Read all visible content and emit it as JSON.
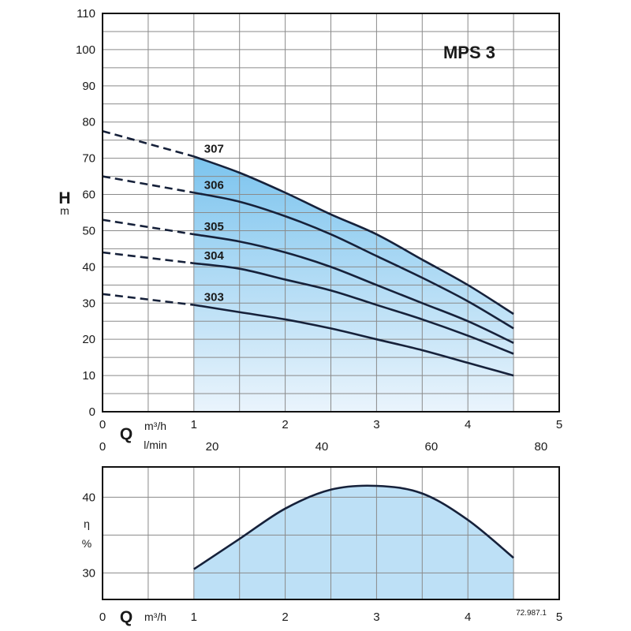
{
  "chart_data": [
    {
      "type": "line",
      "title": "MPS 3",
      "ylabel": "H",
      "yunit": "m",
      "xlabel": "Q",
      "xunit": "m³/h",
      "xunit_secondary": "l/min",
      "xlim": [
        0,
        5
      ],
      "ylim": [
        0,
        110
      ],
      "yticks": [
        "0",
        "10",
        "20",
        "30",
        "40",
        "50",
        "60",
        "70",
        "80",
        "90",
        "100",
        "110"
      ],
      "xticks": [
        "0",
        "1",
        "2",
        "3",
        "4",
        "5"
      ],
      "xticks_secondary": [
        "0",
        "20",
        "40",
        "60",
        "80"
      ],
      "xticks_secondary_values": [
        0,
        20,
        40,
        60,
        80
      ],
      "operating_range": [
        1,
        4.5
      ],
      "grid": true,
      "series": [
        {
          "name": "307",
          "x": [
            0,
            1,
            1.5,
            2,
            2.5,
            3,
            3.5,
            4,
            4.5
          ],
          "y": [
            77.5,
            70.5,
            66,
            60.5,
            54.5,
            49,
            42,
            35,
            27
          ]
        },
        {
          "name": "306",
          "x": [
            0,
            1,
            1.5,
            2,
            2.5,
            3,
            3.5,
            4,
            4.5
          ],
          "y": [
            65,
            60.5,
            58,
            54,
            49,
            43,
            37,
            30.5,
            23
          ]
        },
        {
          "name": "305",
          "x": [
            0,
            1,
            1.5,
            2,
            2.5,
            3,
            3.5,
            4,
            4.5
          ],
          "y": [
            53,
            49,
            47,
            44,
            40,
            35,
            30,
            25,
            19
          ]
        },
        {
          "name": "304",
          "x": [
            0,
            1,
            1.5,
            2,
            2.5,
            3,
            3.5,
            4,
            4.5
          ],
          "y": [
            44,
            41,
            39.5,
            36.5,
            33.5,
            29.5,
            25.5,
            21,
            16
          ]
        },
        {
          "name": "303",
          "x": [
            0,
            1,
            1.5,
            2,
            2.5,
            3,
            3.5,
            4,
            4.5
          ],
          "y": [
            32.5,
            29.5,
            27.5,
            25.5,
            23,
            20,
            17,
            13.5,
            10
          ]
        }
      ],
      "fill_color_top": "#7cc4ee",
      "fill_color_bottom": "#eaf4fc"
    },
    {
      "type": "area",
      "ylabel": "η",
      "yunit": "%",
      "xlabel": "Q",
      "xunit": "m³/h",
      "xlim": [
        0,
        5
      ],
      "ylim": [
        26.5,
        44
      ],
      "yticks": [
        "30",
        "40"
      ],
      "yticks_values": [
        30,
        40
      ],
      "xticks": [
        "0",
        "1",
        "2",
        "3",
        "4",
        "5"
      ],
      "grid": true,
      "series": [
        {
          "x": [
            1,
            1.5,
            2,
            2.5,
            3,
            3.5,
            4,
            4.5
          ],
          "y": [
            30.5,
            34.5,
            38.5,
            41,
            41.5,
            40.5,
            37,
            32
          ]
        }
      ],
      "fill_color": "#bde0f6",
      "code": "72.987.1"
    }
  ]
}
